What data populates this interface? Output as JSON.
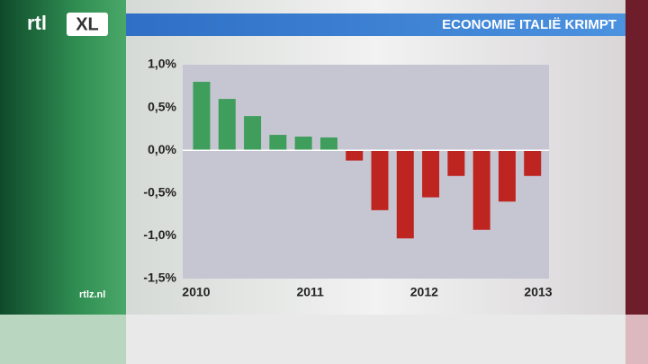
{
  "logo": {
    "left": "rtl",
    "right": "XL"
  },
  "website": "rtlz.nl",
  "chart_data": {
    "type": "bar",
    "title": "ECONOMIE ITALIË KRIMPT",
    "categories": [
      "2010",
      null,
      null,
      null,
      "2011",
      null,
      null,
      null,
      "2012",
      null,
      null,
      null,
      "2013",
      null
    ],
    "values": [
      0.8,
      0.6,
      0.4,
      0.18,
      0.16,
      0.15,
      -0.12,
      -0.7,
      -1.03,
      -0.55,
      -0.3,
      -0.93,
      -0.6,
      -0.3
    ],
    "colors": {
      "positive": "#3f9e5c",
      "negative": "#be2420"
    },
    "ylim": [
      -1.5,
      1.0
    ],
    "yticks": [
      {
        "value": -1.5,
        "label": "-1,5%"
      },
      {
        "value": -1.0,
        "label": "-1,0%"
      },
      {
        "value": -0.5,
        "label": "-0,5%"
      },
      {
        "value": 0,
        "label": "0,0%"
      },
      {
        "value": 0.5,
        "label": "0,5%"
      },
      {
        "value": 1.0,
        "label": "1,0%"
      }
    ]
  }
}
